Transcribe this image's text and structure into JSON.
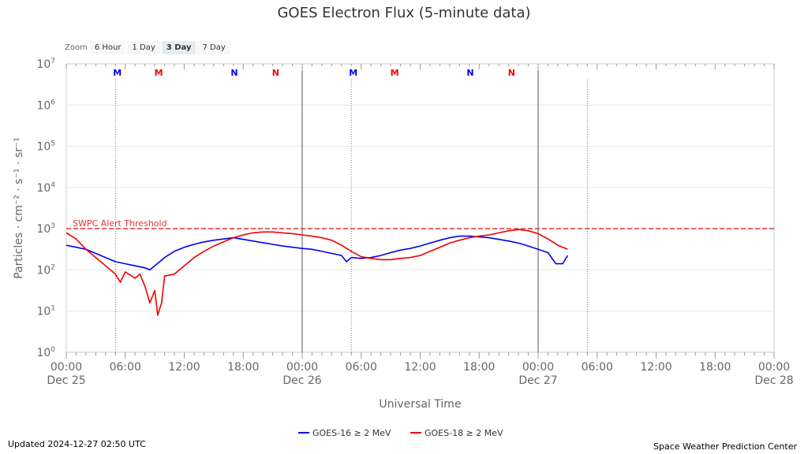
{
  "header": {
    "title": "GOES Electron Flux (5-minute data)"
  },
  "zoom": {
    "label": "Zoom",
    "buttons": [
      "6 Hour",
      "1 Day",
      "3 Day",
      "7 Day"
    ],
    "active": "3 Day"
  },
  "footer": {
    "updated": "Updated 2024-12-27 02:50 UTC",
    "credit": "Space Weather Prediction Center"
  },
  "colors": {
    "goes16": "#0000ee",
    "goes18": "#ee0000",
    "threshold": "#e63030"
  },
  "chart_data": {
    "type": "line",
    "title": "GOES Electron Flux (5-minute data)",
    "xlabel": "Universal Time",
    "ylabel": "Particles · cm⁻² · s⁻¹ · sr⁻¹",
    "x_unit": "hours since Dec 25 00:00 UTC",
    "xlim": [
      0,
      72
    ],
    "ylim_log10": [
      0,
      7
    ],
    "y_ticks": [
      {
        "base": "10",
        "exp": "0"
      },
      {
        "base": "10",
        "exp": "1"
      },
      {
        "base": "10",
        "exp": "2"
      },
      {
        "base": "10",
        "exp": "3"
      },
      {
        "base": "10",
        "exp": "4"
      },
      {
        "base": "10",
        "exp": "5"
      },
      {
        "base": "10",
        "exp": "6"
      },
      {
        "base": "10",
        "exp": "7"
      }
    ],
    "x_ticks": [
      {
        "t": 0,
        "time": "00:00",
        "date": "Dec 25"
      },
      {
        "t": 6,
        "time": "06:00",
        "date": ""
      },
      {
        "t": 12,
        "time": "12:00",
        "date": ""
      },
      {
        "t": 18,
        "time": "18:00",
        "date": ""
      },
      {
        "t": 24,
        "time": "00:00",
        "date": "Dec 26"
      },
      {
        "t": 30,
        "time": "06:00",
        "date": ""
      },
      {
        "t": 36,
        "time": "12:00",
        "date": ""
      },
      {
        "t": 42,
        "time": "18:00",
        "date": ""
      },
      {
        "t": 48,
        "time": "00:00",
        "date": "Dec 27"
      },
      {
        "t": 54,
        "time": "06:00",
        "date": ""
      },
      {
        "t": 60,
        "time": "12:00",
        "date": ""
      },
      {
        "t": 66,
        "time": "18:00",
        "date": ""
      },
      {
        "t": 72,
        "time": "00:00",
        "date": "Dec 28"
      }
    ],
    "day_lines": [
      24,
      48
    ],
    "dotted_lines": [
      5,
      29,
      53
    ],
    "threshold": {
      "value_log10": 3.0,
      "label": "SWPC Alert Threshold"
    },
    "markers": [
      {
        "t": 5.2,
        "label": "M",
        "color": "#0000ee"
      },
      {
        "t": 9.4,
        "label": "M",
        "color": "#ee0000"
      },
      {
        "t": 17.1,
        "label": "N",
        "color": "#0000ee"
      },
      {
        "t": 21.3,
        "label": "N",
        "color": "#ee0000"
      },
      {
        "t": 29.2,
        "label": "M",
        "color": "#0000ee"
      },
      {
        "t": 33.4,
        "label": "M",
        "color": "#ee0000"
      },
      {
        "t": 41.1,
        "label": "N",
        "color": "#0000ee"
      },
      {
        "t": 45.3,
        "label": "N",
        "color": "#ee0000"
      }
    ],
    "series": [
      {
        "name": "GOES-16 ≥ 2 MeV",
        "color": "#0000ee",
        "points": [
          [
            0,
            2.6
          ],
          [
            1,
            2.55
          ],
          [
            2,
            2.5
          ],
          [
            3,
            2.4
          ],
          [
            4,
            2.3
          ],
          [
            5,
            2.2
          ],
          [
            6,
            2.15
          ],
          [
            7,
            2.1
          ],
          [
            8,
            2.05
          ],
          [
            8.5,
            2.0
          ],
          [
            9,
            2.1
          ],
          [
            10,
            2.3
          ],
          [
            11,
            2.45
          ],
          [
            12,
            2.55
          ],
          [
            13,
            2.62
          ],
          [
            14,
            2.68
          ],
          [
            15,
            2.72
          ],
          [
            16,
            2.75
          ],
          [
            17,
            2.78
          ],
          [
            18,
            2.74
          ],
          [
            19,
            2.7
          ],
          [
            20,
            2.66
          ],
          [
            21,
            2.62
          ],
          [
            22,
            2.58
          ],
          [
            23,
            2.55
          ],
          [
            24,
            2.52
          ],
          [
            25,
            2.5
          ],
          [
            26,
            2.45
          ],
          [
            27,
            2.4
          ],
          [
            28,
            2.35
          ],
          [
            28.5,
            2.2
          ],
          [
            29,
            2.3
          ],
          [
            30,
            2.28
          ],
          [
            31,
            2.3
          ],
          [
            32,
            2.35
          ],
          [
            33,
            2.42
          ],
          [
            34,
            2.48
          ],
          [
            35,
            2.52
          ],
          [
            36,
            2.58
          ],
          [
            37,
            2.65
          ],
          [
            38,
            2.72
          ],
          [
            39,
            2.78
          ],
          [
            40,
            2.82
          ],
          [
            41,
            2.82
          ],
          [
            42,
            2.8
          ],
          [
            43,
            2.78
          ],
          [
            44,
            2.74
          ],
          [
            45,
            2.7
          ],
          [
            46,
            2.65
          ],
          [
            47,
            2.58
          ],
          [
            48,
            2.5
          ],
          [
            49,
            2.42
          ],
          [
            49.8,
            2.15
          ],
          [
            50.5,
            2.15
          ],
          [
            51,
            2.35
          ]
        ]
      },
      {
        "name": "GOES-18 ≥ 2 MeV",
        "color": "#ee0000",
        "points": [
          [
            0,
            2.9
          ],
          [
            1,
            2.75
          ],
          [
            2,
            2.5
          ],
          [
            3,
            2.3
          ],
          [
            4,
            2.1
          ],
          [
            5,
            1.9
          ],
          [
            5.5,
            1.7
          ],
          [
            6,
            1.95
          ],
          [
            7,
            1.8
          ],
          [
            7.5,
            1.9
          ],
          [
            8,
            1.6
          ],
          [
            8.5,
            1.2
          ],
          [
            9,
            1.5
          ],
          [
            9.3,
            0.9
          ],
          [
            9.7,
            1.2
          ],
          [
            10,
            1.85
          ],
          [
            11,
            1.9
          ],
          [
            12,
            2.1
          ],
          [
            13,
            2.3
          ],
          [
            14,
            2.45
          ],
          [
            15,
            2.58
          ],
          [
            16,
            2.68
          ],
          [
            17,
            2.78
          ],
          [
            18,
            2.85
          ],
          [
            19,
            2.9
          ],
          [
            20,
            2.92
          ],
          [
            21,
            2.92
          ],
          [
            22,
            2.9
          ],
          [
            23,
            2.88
          ],
          [
            24,
            2.85
          ],
          [
            25,
            2.82
          ],
          [
            26,
            2.78
          ],
          [
            27,
            2.72
          ],
          [
            28,
            2.6
          ],
          [
            29,
            2.45
          ],
          [
            30,
            2.32
          ],
          [
            31,
            2.28
          ],
          [
            32,
            2.25
          ],
          [
            33,
            2.25
          ],
          [
            34,
            2.28
          ],
          [
            35,
            2.3
          ],
          [
            36,
            2.35
          ],
          [
            37,
            2.45
          ],
          [
            38,
            2.55
          ],
          [
            39,
            2.65
          ],
          [
            40,
            2.72
          ],
          [
            41,
            2.78
          ],
          [
            42,
            2.82
          ],
          [
            43,
            2.85
          ],
          [
            44,
            2.9
          ],
          [
            45,
            2.95
          ],
          [
            46,
            2.98
          ],
          [
            47,
            2.95
          ],
          [
            48,
            2.88
          ],
          [
            49,
            2.75
          ],
          [
            50,
            2.6
          ],
          [
            51,
            2.5
          ]
        ]
      }
    ]
  }
}
